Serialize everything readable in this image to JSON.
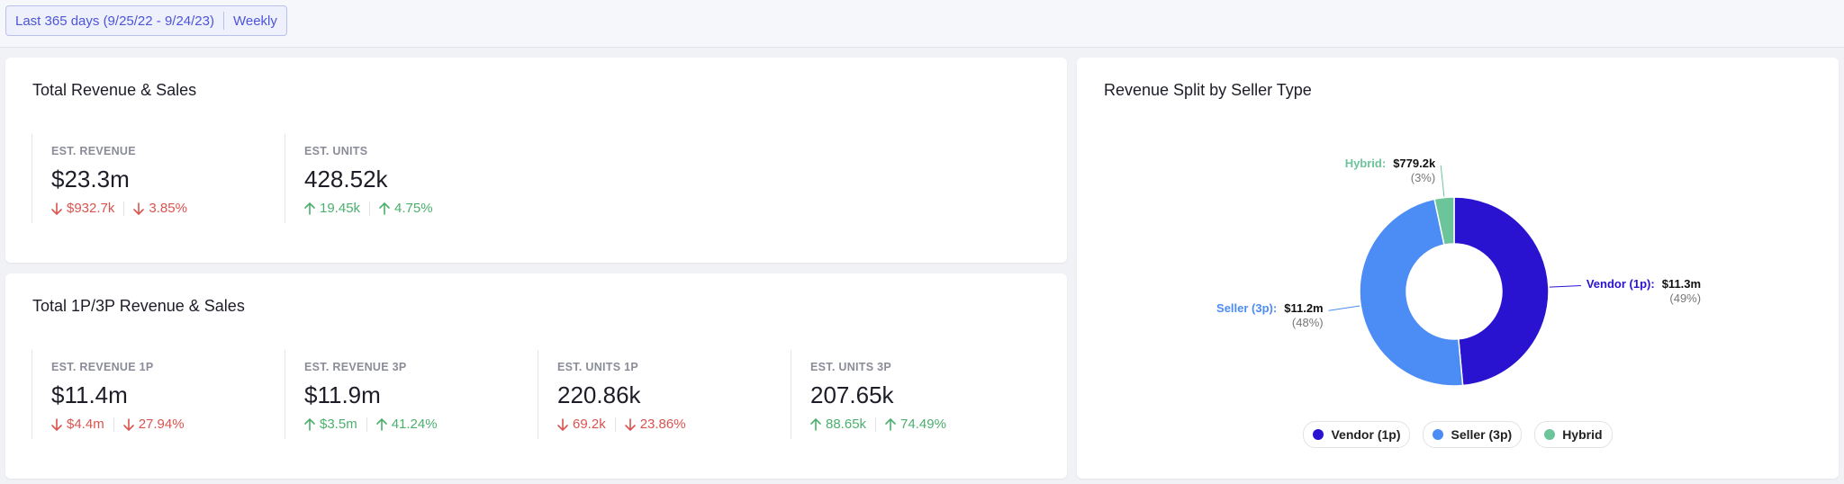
{
  "filter": {
    "date_range": "Last 365 days (9/25/22 - 9/24/23)",
    "interval": "Weekly"
  },
  "cards": [
    {
      "title": "Total Revenue & Sales",
      "metrics": [
        {
          "label": "EST. REVENUE",
          "value": "$23.3m",
          "changes": [
            {
              "text": "$932.7k",
              "trend": "down"
            },
            {
              "text": "3.85%",
              "trend": "down"
            }
          ]
        },
        {
          "label": "EST. UNITS",
          "value": "428.52k",
          "changes": [
            {
              "text": "19.45k",
              "trend": "up"
            },
            {
              "text": "4.75%",
              "trend": "up"
            }
          ]
        }
      ]
    },
    {
      "title": "Total 1P/3P Revenue & Sales",
      "metrics": [
        {
          "label": "EST. REVENUE 1P",
          "value": "$11.4m",
          "changes": [
            {
              "text": "$4.4m",
              "trend": "down"
            },
            {
              "text": "27.94%",
              "trend": "down"
            }
          ]
        },
        {
          "label": "EST. REVENUE 3P",
          "value": "$11.9m",
          "changes": [
            {
              "text": "$3.5m",
              "trend": "up"
            },
            {
              "text": "41.24%",
              "trend": "up"
            }
          ]
        },
        {
          "label": "EST. UNITS 1P",
          "value": "220.86k",
          "changes": [
            {
              "text": "69.2k",
              "trend": "down"
            },
            {
              "text": "23.86%",
              "trend": "down"
            }
          ]
        },
        {
          "label": "EST. UNITS 3P",
          "value": "207.65k",
          "changes": [
            {
              "text": "88.65k",
              "trend": "up"
            },
            {
              "text": "74.49%",
              "trend": "up"
            }
          ]
        }
      ]
    }
  ],
  "trend_colors": {
    "up": "#4caf6e",
    "down": "#d9534f"
  },
  "chart_data": {
    "type": "pie",
    "donut": true,
    "title": "Revenue Split by Seller Type",
    "categories": [
      "Vendor (1p)",
      "Seller (3p)",
      "Hybrid"
    ],
    "values": [
      11300000,
      11200000,
      779200
    ],
    "value_labels": [
      "$11.3m",
      "$11.2m",
      "$779.2k"
    ],
    "percent_labels": [
      "(49%)",
      "(48%)",
      "(3%)"
    ],
    "colors": [
      "#2a13d0",
      "#4c8cf5",
      "#6cc49a"
    ]
  }
}
